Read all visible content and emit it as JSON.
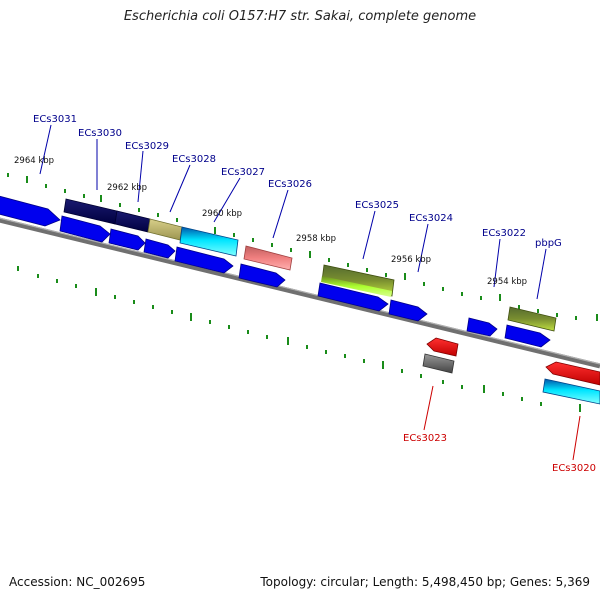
{
  "title": "Escherichia coli O157:H7 str. Sakai, complete genome",
  "footer": {
    "accession": "Accession: NC_002695",
    "summary": "Topology: circular; Length: 5,498,450 bp; Genes: 5,369"
  },
  "colors": {
    "backbone": "#808080",
    "tick": "#1a8c1a",
    "label_forward": "#00008b",
    "label_reverse": "#cc0000",
    "arrow": "#0000ee"
  },
  "scale_labels": [
    "2964 kbp",
    "2962 kbp",
    "2960 kbp",
    "2958 kbp",
    "2956 kbp",
    "2954 kbp"
  ],
  "gene_labels": {
    "forward": [
      "ECs3031",
      "ECs3030",
      "ECs3029",
      "ECs3028",
      "ECs3027",
      "ECs3026",
      "ECs3025",
      "ECs3024",
      "ECs3022",
      "pbpG"
    ],
    "reverse": [
      "ECs3023",
      "ECs3020"
    ]
  }
}
